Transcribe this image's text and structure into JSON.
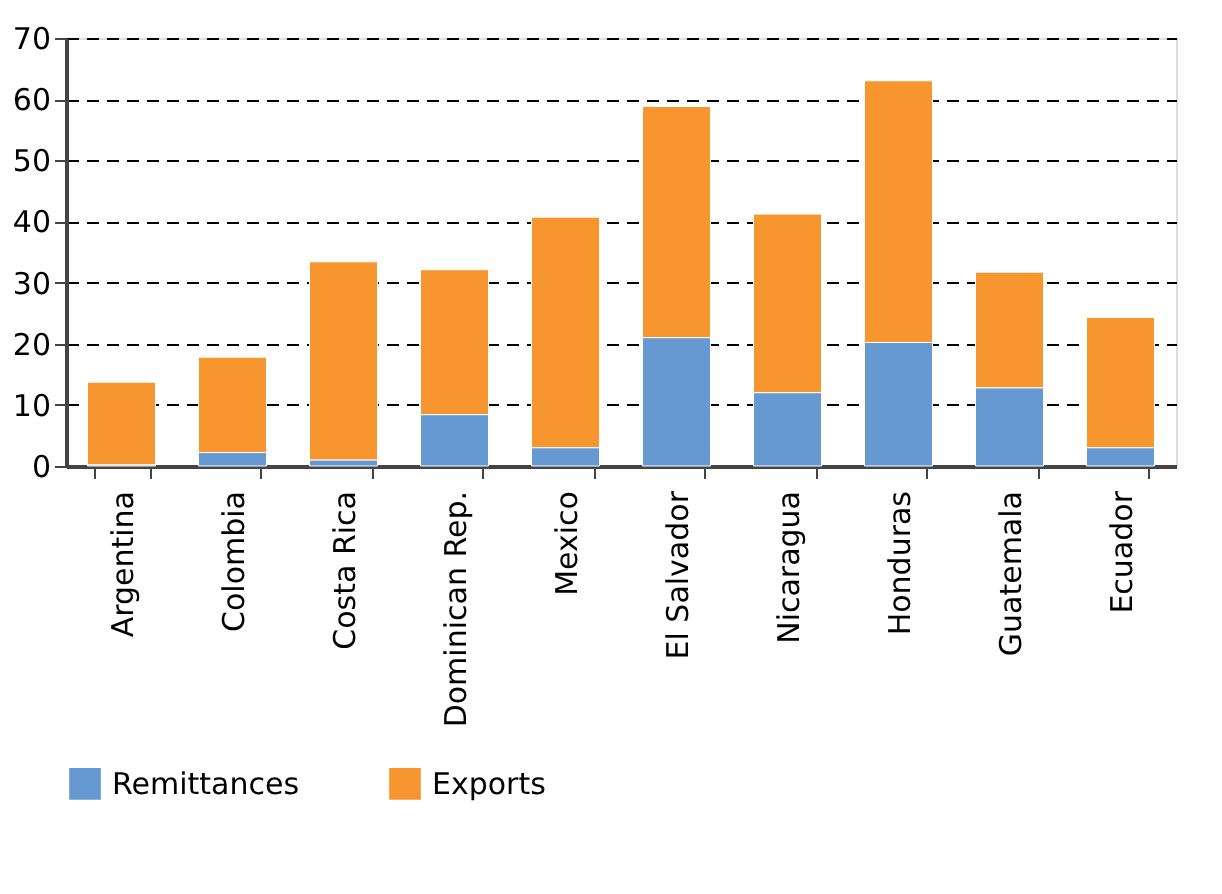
{
  "chart_data": {
    "type": "bar",
    "stacked": true,
    "categories": [
      "Argentina",
      "Colombia",
      "Costa Rica",
      "Dominican Rep.",
      "Mexico",
      "El Salvador",
      "Nicaragua",
      "Honduras",
      "Guatemala",
      "Ecuador"
    ],
    "series": [
      {
        "name": "Remittances",
        "color": "#6699d1",
        "values": [
          0.2,
          2.2,
          1.0,
          8.4,
          3.0,
          21.0,
          12.0,
          20.2,
          12.8,
          3.0
        ]
      },
      {
        "name": "Exports",
        "color": "#f7962e",
        "values": [
          13.5,
          15.6,
          32.4,
          23.7,
          37.7,
          37.8,
          29.2,
          42.8,
          18.9,
          21.3
        ]
      }
    ],
    "ylim": [
      0,
      70
    ],
    "yticks": [
      0,
      10,
      20,
      30,
      40,
      50,
      60,
      70
    ],
    "grid": "y",
    "legend": "bottom"
  }
}
